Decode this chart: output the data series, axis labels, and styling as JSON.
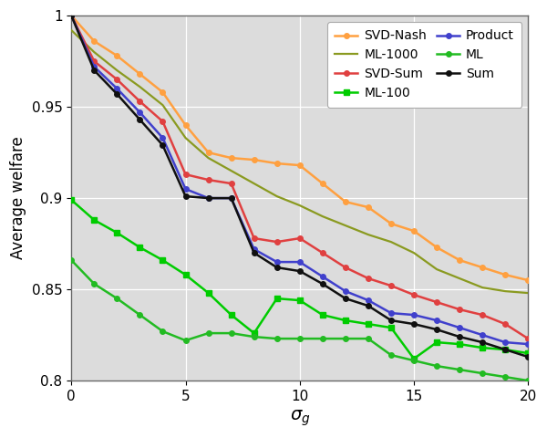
{
  "x": [
    0,
    1,
    2,
    3,
    4,
    5,
    6,
    7,
    8,
    9,
    10,
    11,
    12,
    13,
    14,
    15,
    16,
    17,
    18,
    19,
    20
  ],
  "svd_nash": [
    1.0,
    0.986,
    0.978,
    0.968,
    0.958,
    0.94,
    0.925,
    0.922,
    0.921,
    0.919,
    0.918,
    0.908,
    0.898,
    0.895,
    0.886,
    0.882,
    0.873,
    0.866,
    0.862,
    0.858,
    0.855
  ],
  "svd_sum": [
    1.0,
    0.975,
    0.965,
    0.953,
    0.942,
    0.913,
    0.91,
    0.908,
    0.878,
    0.876,
    0.878,
    0.87,
    0.862,
    0.856,
    0.852,
    0.847,
    0.843,
    0.839,
    0.836,
    0.831,
    0.823
  ],
  "product": [
    1.0,
    0.972,
    0.96,
    0.947,
    0.933,
    0.905,
    0.9,
    0.9,
    0.872,
    0.865,
    0.865,
    0.857,
    0.849,
    0.844,
    0.837,
    0.836,
    0.833,
    0.829,
    0.825,
    0.821,
    0.82
  ],
  "sum": [
    1.0,
    0.97,
    0.957,
    0.943,
    0.929,
    0.901,
    0.9,
    0.9,
    0.87,
    0.862,
    0.86,
    0.853,
    0.845,
    0.841,
    0.833,
    0.831,
    0.828,
    0.824,
    0.821,
    0.817,
    0.813
  ],
  "ml1000": [
    0.992,
    0.98,
    0.97,
    0.961,
    0.951,
    0.933,
    0.922,
    0.915,
    0.908,
    0.901,
    0.896,
    0.89,
    0.885,
    0.88,
    0.876,
    0.87,
    0.861,
    0.856,
    0.851,
    0.849,
    0.848
  ],
  "ml100": [
    0.899,
    0.888,
    0.881,
    0.873,
    0.866,
    0.858,
    0.848,
    0.836,
    0.826,
    0.845,
    0.844,
    0.836,
    0.833,
    0.831,
    0.829,
    0.812,
    0.821,
    0.82,
    0.818,
    0.817,
    0.815
  ],
  "ml": [
    0.866,
    0.853,
    0.845,
    0.836,
    0.827,
    0.822,
    0.826,
    0.826,
    0.824,
    0.823,
    0.823,
    0.823,
    0.823,
    0.823,
    0.814,
    0.811,
    0.808,
    0.806,
    0.804,
    0.802,
    0.8
  ],
  "color_svd_nash": "#FFA040",
  "color_svd_sum": "#E04040",
  "color_product": "#4040CC",
  "color_sum": "#101010",
  "color_ml1000": "#8A9A20",
  "color_ml100": "#00CC00",
  "color_ml": "#22BB22",
  "bg_color": "#DCDCDC",
  "fig_bg": "#FFFFFF",
  "ylabel": "Average welfare",
  "xlabel": "$\\sigma_g$",
  "ylim": [
    0.8,
    1.0
  ],
  "xlim": [
    0,
    20
  ],
  "xticks": [
    0,
    5,
    10,
    15,
    20
  ],
  "yticks": [
    0.8,
    0.85,
    0.9,
    0.95,
    1.0
  ]
}
